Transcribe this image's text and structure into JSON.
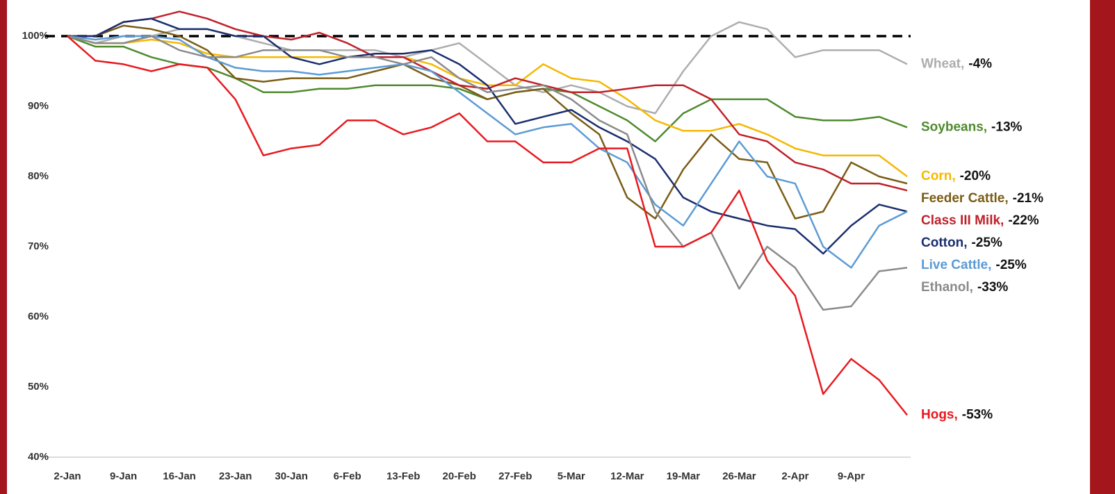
{
  "chart_data": {
    "type": "line",
    "categories": [
      "2-Jan",
      null,
      "9-Jan",
      null,
      "16-Jan",
      null,
      "23-Jan",
      null,
      "30-Jan",
      null,
      "6-Feb",
      null,
      "13-Feb",
      null,
      "20-Feb",
      null,
      "27-Feb",
      null,
      "5-Mar",
      null,
      "12-Mar",
      null,
      "19-Mar",
      null,
      "26-Mar",
      null,
      "2-Apr",
      null,
      "9-Apr",
      null,
      null
    ],
    "ylim": [
      40,
      100
    ],
    "yticks": [
      {
        "value": 40,
        "label": "40%"
      },
      {
        "value": 50,
        "label": "50%"
      },
      {
        "value": 60,
        "label": "60%"
      },
      {
        "value": 70,
        "label": "70%"
      },
      {
        "value": 80,
        "label": "80%"
      },
      {
        "value": 90,
        "label": "90%"
      },
      {
        "value": 100,
        "label": "100%"
      }
    ],
    "reference_line": 100,
    "series": [
      {
        "name": "Wheat,",
        "change": "-4%",
        "color": "#adadad",
        "values": [
          100,
          99,
          100,
          100,
          101,
          101,
          100,
          99,
          98,
          98,
          98,
          98,
          97,
          98,
          99,
          96,
          93,
          92,
          93,
          92,
          90,
          89,
          95,
          100,
          102,
          101,
          97,
          98,
          98,
          98,
          96
        ]
      },
      {
        "name": "Soybeans,",
        "change": "-13%",
        "color": "#4e8a2e",
        "values": [
          100,
          98.5,
          98.5,
          97,
          96,
          95.5,
          94,
          92,
          92,
          92.5,
          92.5,
          93,
          93,
          93,
          92.5,
          91,
          92,
          92.5,
          92,
          90,
          88,
          85,
          89,
          91,
          91,
          91,
          88.5,
          88,
          88,
          88.5,
          87
        ]
      },
      {
        "name": "Corn,",
        "change": "-20%",
        "color": "#f5b800",
        "values": [
          100,
          99,
          99,
          99.5,
          99,
          97.5,
          97,
          97,
          97,
          97,
          97,
          97,
          97,
          96,
          94,
          93,
          93,
          96,
          94,
          93.5,
          91,
          88,
          86.5,
          86.5,
          87.5,
          86,
          84,
          83,
          83,
          83,
          80
        ]
      },
      {
        "name": "Feeder Cattle,",
        "change": "-21%",
        "color": "#7a5c14",
        "values": [
          100,
          100,
          101.5,
          101,
          100,
          98,
          94,
          93.5,
          94,
          94,
          94,
          95,
          96,
          94,
          93,
          91,
          92,
          92.5,
          89,
          86,
          77,
          74,
          81,
          86,
          82.5,
          82,
          74,
          75,
          82,
          80,
          79
        ]
      },
      {
        "name": "Class III Milk,",
        "change": "-22%",
        "color": "#c0202a",
        "values": [
          100,
          100,
          102,
          102.5,
          103.5,
          102.5,
          101,
          100,
          99.5,
          100.5,
          99,
          97,
          97,
          95,
          93,
          92.5,
          94,
          93,
          92,
          92,
          92.5,
          93,
          93,
          91,
          86,
          85,
          82,
          81,
          79,
          79,
          78
        ]
      },
      {
        "name": "Cotton,",
        "change": "-25%",
        "color": "#1a2e6e",
        "values": [
          100,
          100,
          102,
          102.5,
          101,
          101,
          100,
          100,
          97,
          96,
          97,
          97.5,
          97.5,
          98,
          96,
          93,
          87.5,
          88.5,
          89.5,
          87,
          85,
          82.5,
          77,
          75,
          74,
          73,
          72.5,
          69,
          73,
          76,
          75
        ]
      },
      {
        "name": "Live Cattle,",
        "change": "-25%",
        "color": "#5b9bd5",
        "values": [
          100,
          99.5,
          100,
          100,
          99.5,
          97,
          95.5,
          95,
          95,
          94.5,
          95,
          95.5,
          96,
          95,
          92,
          89,
          86,
          87,
          87.5,
          84,
          82,
          76,
          73,
          79,
          85,
          80,
          79,
          70,
          67,
          73,
          75
        ]
      },
      {
        "name": "Ethanol,",
        "change": "-33%",
        "color": "#8a8a8a",
        "values": [
          100,
          99,
          99,
          100,
          98,
          97,
          97,
          98,
          98,
          98,
          97,
          97,
          96,
          97,
          94,
          92,
          92.5,
          93,
          91,
          88,
          86,
          75,
          70,
          72,
          64,
          70,
          67,
          61,
          61.5,
          66.5,
          67
        ]
      },
      {
        "name": "Hogs,",
        "change": "-53%",
        "color": "#e8191f",
        "values": [
          100,
          96.5,
          96,
          95,
          96,
          95.5,
          91,
          83,
          84,
          84.5,
          88,
          88,
          86,
          87,
          89,
          85,
          85,
          82,
          82,
          84,
          84,
          70,
          70,
          72,
          78,
          68,
          63,
          49,
          54,
          51,
          46
        ]
      }
    ]
  }
}
